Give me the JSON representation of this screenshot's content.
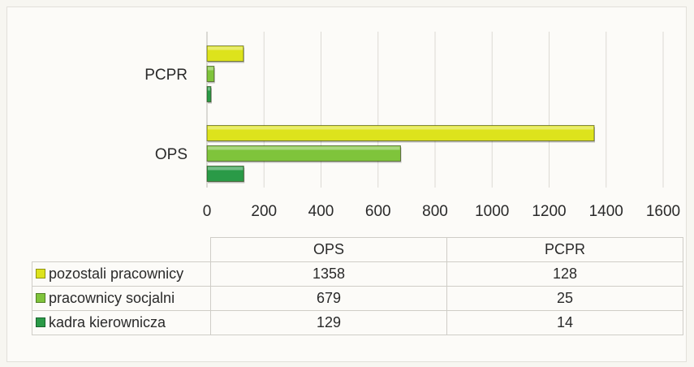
{
  "chart_data": {
    "type": "bar",
    "orientation": "horizontal",
    "title": "",
    "xlabel": "",
    "ylabel": "",
    "xlim": [
      0,
      1600
    ],
    "x_ticks": [
      "0",
      "200",
      "400",
      "600",
      "800",
      "1000",
      "1200",
      "1400",
      "1600"
    ],
    "grid": true,
    "legend": "data table below chart",
    "categories": [
      "OPS",
      "PCPR"
    ],
    "series": [
      {
        "name": "pozostali pracownicy",
        "color": "#dde31c",
        "values": [
          1358,
          128
        ]
      },
      {
        "name": "pracownicy socjalni",
        "color": "#7fc43b",
        "values": [
          679,
          25
        ]
      },
      {
        "name": "kadra kierownicza",
        "color": "#2a9a47",
        "values": [
          129,
          14
        ]
      }
    ]
  }
}
